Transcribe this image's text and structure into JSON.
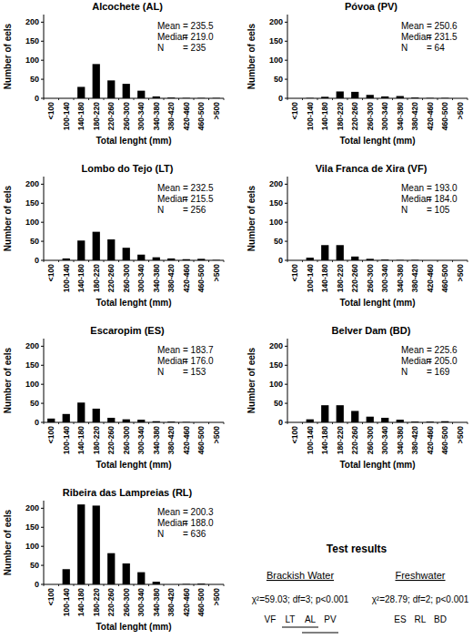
{
  "chart_data": [
    {
      "type": "bar",
      "title": "Alcochete (AL)",
      "categories": [
        "<100",
        "100-140",
        "140-180",
        "180-220",
        "220-260",
        "260-300",
        "300-340",
        "340-380",
        "380-420",
        "420-460",
        "460-500",
        ">500"
      ],
      "values": [
        0,
        0,
        30,
        90,
        47,
        38,
        20,
        5,
        2,
        1,
        1,
        1
      ],
      "color": "#000000",
      "ylim": [
        0,
        220
      ],
      "yticks": [
        0,
        50,
        100,
        150,
        200
      ],
      "grid": false,
      "xlabel": "Total lenght (mm)",
      "ylabel": "Number of eels",
      "annotations": [
        {
          "label": "Mean",
          "text": "= 235.5"
        },
        {
          "label": "Median",
          "text": "= 219.0"
        },
        {
          "label": "N",
          "text": "= 235"
        }
      ]
    },
    {
      "type": "bar",
      "title": "Póvoa (PV)",
      "categories": [
        "<100",
        "100-140",
        "140-180",
        "180-220",
        "220-260",
        "260-300",
        "300-340",
        "340-380",
        "380-420",
        "420-460",
        "460-500",
        ">500"
      ],
      "values": [
        0,
        1,
        4,
        18,
        17,
        9,
        5,
        6,
        2,
        1,
        1,
        0
      ],
      "color": "#000000",
      "ylim": [
        0,
        220
      ],
      "yticks": [
        0,
        50,
        100,
        150,
        200
      ],
      "grid": false,
      "xlabel": "Total lenght (mm)",
      "ylabel": "Number of eels",
      "annotations": [
        {
          "label": "Mean",
          "text": "= 250.6"
        },
        {
          "label": "Median",
          "text": "= 231.5"
        },
        {
          "label": "N",
          "text": "= 64"
        }
      ]
    },
    {
      "type": "bar",
      "title": "Lombo do Tejo (LT)",
      "categories": [
        "<100",
        "100-140",
        "140-180",
        "180-220",
        "220-260",
        "260-300",
        "300-340",
        "340-380",
        "380-420",
        "420-460",
        "460-500",
        ">500"
      ],
      "values": [
        0,
        5,
        52,
        75,
        55,
        33,
        15,
        8,
        5,
        3,
        4,
        1
      ],
      "color": "#000000",
      "ylim": [
        0,
        220
      ],
      "yticks": [
        0,
        50,
        100,
        150,
        200
      ],
      "grid": false,
      "xlabel": "Total lenght (mm)",
      "ylabel": "Number of eels",
      "annotations": [
        {
          "label": "Mean",
          "text": "= 232.5"
        },
        {
          "label": "Median",
          "text": "= 215.5"
        },
        {
          "label": "N",
          "text": "= 256"
        }
      ]
    },
    {
      "type": "bar",
      "title": "Vila Franca de Xira (VF)",
      "categories": [
        "<100",
        "100-140",
        "140-180",
        "180-220",
        "220-260",
        "260-300",
        "300-340",
        "340-380",
        "380-420",
        "420-460",
        "460-500",
        ">500"
      ],
      "values": [
        0,
        7,
        40,
        40,
        10,
        4,
        2,
        1,
        1,
        0,
        0,
        0
      ],
      "color": "#000000",
      "ylim": [
        0,
        220
      ],
      "yticks": [
        0,
        50,
        100,
        150,
        200
      ],
      "grid": false,
      "xlabel": "Total lenght (mm)",
      "ylabel": "Number of eels",
      "annotations": [
        {
          "label": "Mean",
          "text": "= 193.0"
        },
        {
          "label": "Median",
          "text": "= 184.0"
        },
        {
          "label": "N",
          "text": "= 105"
        }
      ]
    },
    {
      "type": "bar",
      "title": "Escaropim (ES)",
      "categories": [
        "<100",
        "100-140",
        "140-180",
        "180-220",
        "220-260",
        "260-300",
        "300-340",
        "340-380",
        "380-420",
        "420-460",
        "460-500",
        ">500"
      ],
      "values": [
        10,
        22,
        52,
        36,
        12,
        8,
        7,
        3,
        2,
        1,
        0,
        0
      ],
      "color": "#000000",
      "ylim": [
        0,
        220
      ],
      "yticks": [
        0,
        50,
        100,
        150,
        200
      ],
      "grid": false,
      "xlabel": "Total lenght (mm)",
      "ylabel": "Number of eels",
      "annotations": [
        {
          "label": "Mean",
          "text": "= 183.7"
        },
        {
          "label": "Median",
          "text": "= 176.0"
        },
        {
          "label": "N",
          "text": "= 153"
        }
      ]
    },
    {
      "type": "bar",
      "title": "Belver Dam (BD)",
      "categories": [
        "<100",
        "100-140",
        "140-180",
        "180-220",
        "220-260",
        "260-300",
        "300-340",
        "340-380",
        "380-420",
        "420-460",
        "460-500",
        ">500"
      ],
      "values": [
        0,
        8,
        45,
        45,
        30,
        15,
        12,
        7,
        2,
        2,
        3,
        0
      ],
      "color": "#000000",
      "ylim": [
        0,
        220
      ],
      "yticks": [
        0,
        50,
        100,
        150,
        200
      ],
      "grid": false,
      "xlabel": "Total lenght (mm)",
      "ylabel": "Number of eels",
      "annotations": [
        {
          "label": "Mean",
          "text": "= 225.6"
        },
        {
          "label": "Median",
          "text": "= 205.0"
        },
        {
          "label": "N",
          "text": "= 169"
        }
      ]
    },
    {
      "type": "bar",
      "title": "Ribeira das Lampreias (RL)",
      "categories": [
        "<100",
        "100-140",
        "140-180",
        "180-220",
        "220-260",
        "260-300",
        "300-340",
        "340-380",
        "380-420",
        "420-460",
        "460-500",
        ">500"
      ],
      "values": [
        0,
        40,
        210,
        207,
        82,
        55,
        32,
        7,
        0,
        1,
        2,
        0
      ],
      "color": "#000000",
      "ylim": [
        0,
        220
      ],
      "yticks": [
        0,
        50,
        100,
        150,
        200
      ],
      "grid": false,
      "xlabel": "Total lenght (mm)",
      "ylabel": "Number of eels",
      "annotations": [
        {
          "label": "Mean",
          "text": "= 200.3"
        },
        {
          "label": "Median",
          "text": "= 188.0"
        },
        {
          "label": "N",
          "text": "= 636"
        }
      ]
    }
  ],
  "test_results": {
    "title": "Test results",
    "tests": [
      {
        "heading": "Brackish Water",
        "statistic": "χ²=59.03; df=3; p<0.001",
        "sites": [
          "VF",
          "LT",
          "AL",
          "PV"
        ],
        "groups": [
          [
            "LT",
            "AL"
          ],
          [
            "AL",
            "PV"
          ]
        ]
      },
      {
        "heading": "Freshwater",
        "statistic": "χ²=28.79; df=2; p<0.001",
        "sites": [
          "ES",
          "RL",
          "BD"
        ],
        "groups": []
      }
    ]
  }
}
